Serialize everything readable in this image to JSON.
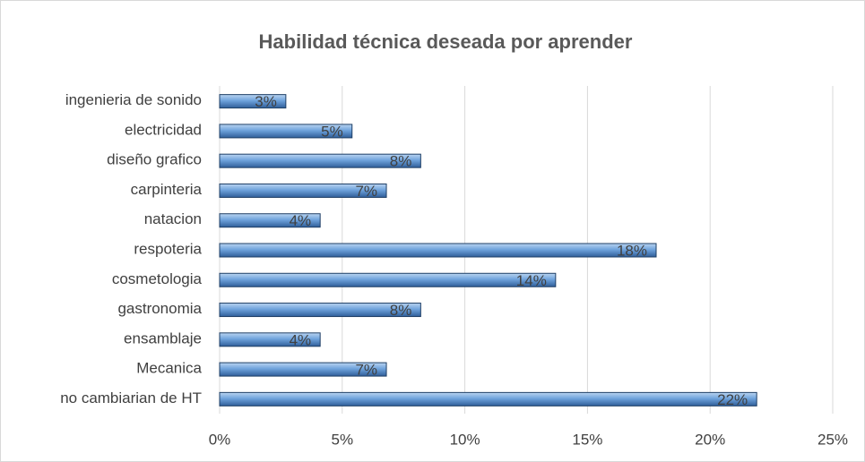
{
  "chart_data": {
    "type": "bar",
    "orientation": "horizontal",
    "title": "Habilidad técnica deseada por aprender",
    "categories": [
      "ingenieria de sonido",
      "electricidad",
      "diseño grafico",
      "carpinteria",
      "natacion",
      "respoteria",
      "cosmetologia",
      "gastronomia",
      "ensamblaje",
      "Mecanica",
      "no cambiarian de HT"
    ],
    "values": [
      2.7,
      5.4,
      8.2,
      6.8,
      4.1,
      17.8,
      13.7,
      8.2,
      4.1,
      6.8,
      21.9
    ],
    "value_labels": [
      "3%",
      "5%",
      "8%",
      "7%",
      "4%",
      "18%",
      "14%",
      "8%",
      "4%",
      "7%",
      "22%"
    ],
    "color": "#6fa3dc",
    "xlim": [
      0,
      25
    ],
    "xticks": [
      {
        "value": 0,
        "label": "0%"
      },
      {
        "value": 5,
        "label": "5%"
      },
      {
        "value": 10,
        "label": "10%"
      },
      {
        "value": 15,
        "label": "15%"
      },
      {
        "value": 20,
        "label": "20%"
      },
      {
        "value": 25,
        "label": "25%"
      }
    ],
    "grid": true
  }
}
